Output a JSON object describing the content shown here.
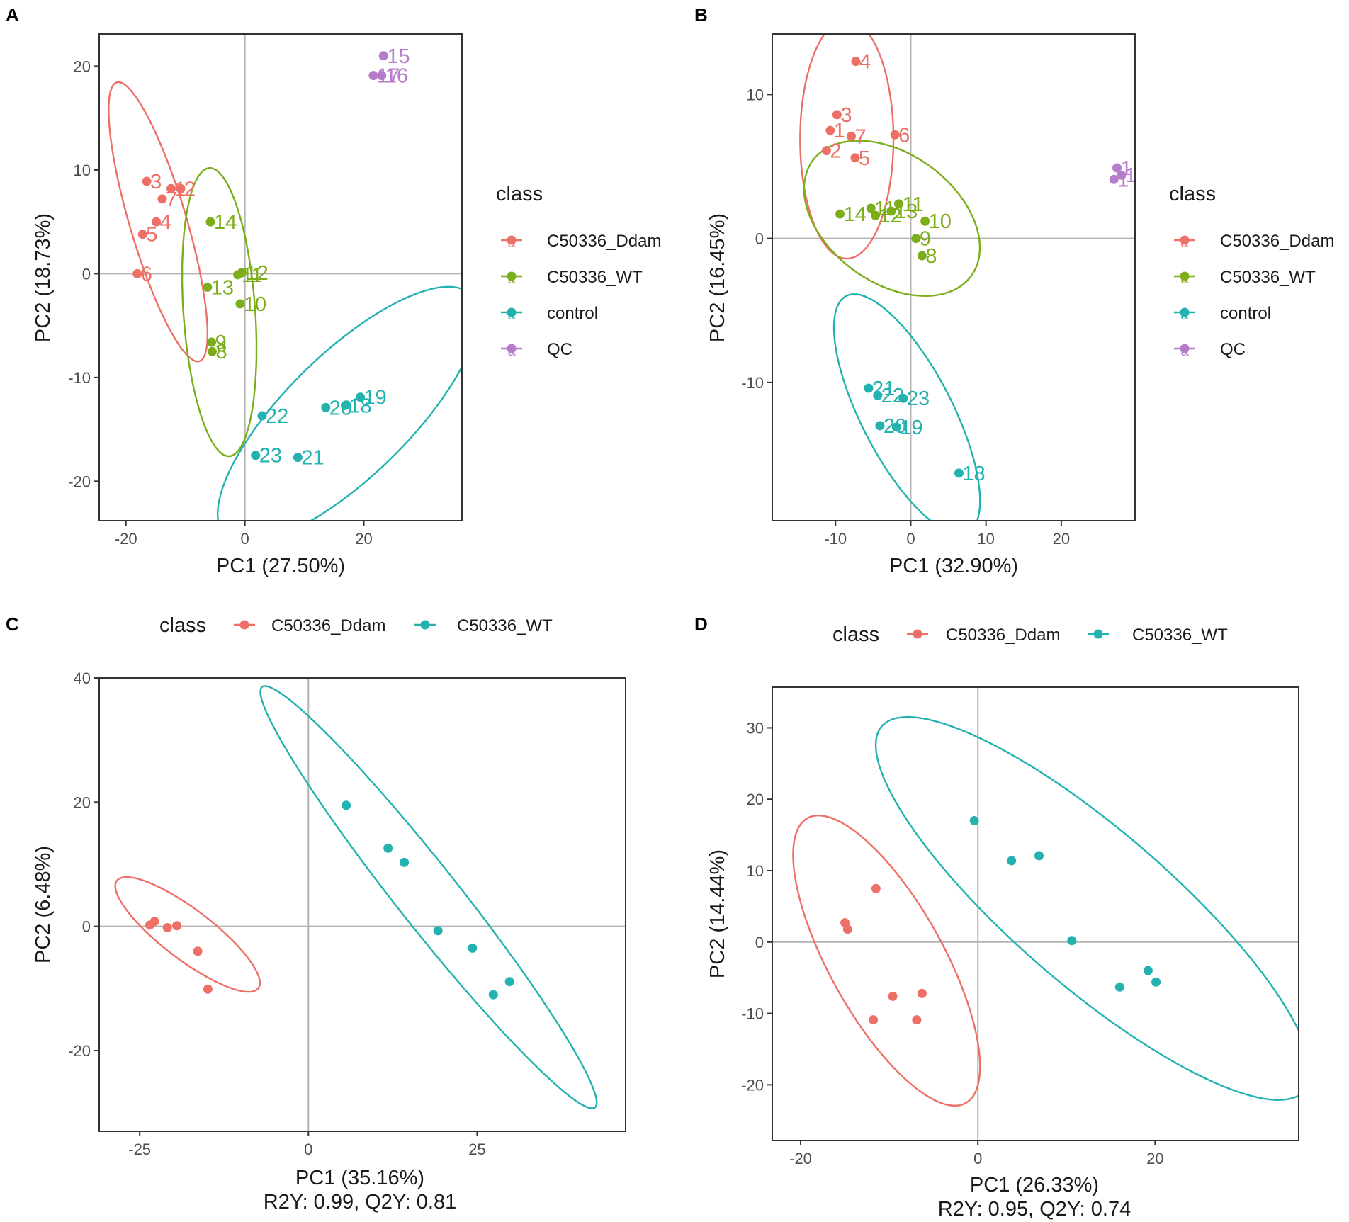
{
  "colors": {
    "ddam": "#ED6F66",
    "wt": "#7CAE1A",
    "control": "#23B2B0",
    "qc": "#B57CC9",
    "axis": "#333333",
    "tick_text": "#4d4d4d",
    "zero_line": "#b3b3b3",
    "text": "#1a1a1a"
  },
  "chart_data": [
    {
      "panel": "A",
      "type": "scatter",
      "xlabel": "PC1 (27.50%)",
      "ylabel": "PC2 (18.73%)",
      "xlim": [
        -24.5,
        36.5
      ],
      "ylim": [
        -23.8,
        23.1
      ],
      "xticks": [
        -20,
        0,
        20
      ],
      "xtick_labels": [
        "-20",
        "0",
        "20"
      ],
      "yticks": [
        -20,
        -10,
        0,
        10,
        20
      ],
      "ytick_labels": [
        "-20",
        "-10",
        "0",
        "10",
        "20"
      ],
      "legend": {
        "title": "class",
        "position": "right",
        "key_glyph": "a",
        "items": [
          {
            "label": "C50336_Ddam",
            "group": "ddam"
          },
          {
            "label": "C50336_WT",
            "group": "wt"
          },
          {
            "label": "control",
            "group": "control"
          },
          {
            "label": "QC",
            "group": "qc"
          }
        ]
      },
      "series": [
        {
          "name": "C50336_Ddam",
          "group": "ddam",
          "points": [
            {
              "x": -16.5,
              "y": 8.9,
              "label": "3"
            },
            {
              "x": -12.4,
              "y": 8.2,
              "label": "1"
            },
            {
              "x": -10.8,
              "y": 8.2,
              "label": "2"
            },
            {
              "x": -13.9,
              "y": 7.2,
              "label": "7"
            },
            {
              "x": -14.9,
              "y": 5.0,
              "label": "4"
            },
            {
              "x": -17.2,
              "y": 3.8,
              "label": "5"
            },
            {
              "x": -18.1,
              "y": 0.0,
              "label": "6"
            }
          ]
        },
        {
          "name": "C50336_WT",
          "group": "wt",
          "points": [
            {
              "x": -5.8,
              "y": 5.0,
              "label": "14"
            },
            {
              "x": -1.2,
              "y": -0.1,
              "label": "11"
            },
            {
              "x": -0.5,
              "y": 0.1,
              "label": "12"
            },
            {
              "x": -6.3,
              "y": -1.3,
              "label": "13"
            },
            {
              "x": -0.8,
              "y": -2.9,
              "label": "10"
            },
            {
              "x": -5.6,
              "y": -6.6,
              "label": "9"
            },
            {
              "x": -5.5,
              "y": -7.5,
              "label": "8"
            }
          ]
        },
        {
          "name": "control",
          "group": "control",
          "points": [
            {
              "x": 19.4,
              "y": -11.9,
              "label": "19"
            },
            {
              "x": 13.6,
              "y": -12.9,
              "label": "20"
            },
            {
              "x": 16.9,
              "y": -12.7,
              "label": "18"
            },
            {
              "x": 2.9,
              "y": -13.7,
              "label": "22"
            },
            {
              "x": 1.8,
              "y": -17.5,
              "label": "23"
            },
            {
              "x": 8.9,
              "y": -17.7,
              "label": "21"
            }
          ]
        },
        {
          "name": "QC",
          "group": "qc",
          "points": [
            {
              "x": 23.3,
              "y": 21.0,
              "label": "15"
            },
            {
              "x": 21.6,
              "y": 19.1,
              "label": "17"
            },
            {
              "x": 23.0,
              "y": 19.1,
              "label": "16"
            }
          ]
        }
      ],
      "ellipses": [
        {
          "group": "ddam",
          "cx": -14.6,
          "cy": 5.0,
          "rx": 15.2,
          "ry": 4.4,
          "angle_deg": -61
        },
        {
          "group": "wt",
          "cx": -4.3,
          "cy": -3.7,
          "rx": 14.0,
          "ry": 6.0,
          "angle_deg": -82
        },
        {
          "group": "control",
          "cx": 17.3,
          "cy": -13.6,
          "rx": 24.1,
          "ry": 7.1,
          "angle_deg": 26
        }
      ]
    },
    {
      "panel": "B",
      "type": "scatter",
      "xlabel": "PC1 (32.90%)",
      "ylabel": "PC2 (16.45%)",
      "xlim": [
        -18.4,
        29.8
      ],
      "ylim": [
        -19.6,
        14.2
      ],
      "xticks": [
        -10,
        0,
        10,
        20
      ],
      "xtick_labels": [
        "-10",
        "0",
        "10",
        "20"
      ],
      "yticks": [
        -10,
        0,
        10
      ],
      "ytick_labels": [
        "-10",
        "0",
        "10"
      ],
      "legend": {
        "title": "class",
        "position": "right",
        "key_glyph": "a",
        "items": [
          {
            "label": "C50336_Ddam",
            "group": "ddam"
          },
          {
            "label": "C50336_WT",
            "group": "wt"
          },
          {
            "label": "control",
            "group": "control"
          },
          {
            "label": "QC",
            "group": "qc"
          }
        ]
      },
      "series": [
        {
          "name": "C50336_Ddam",
          "group": "ddam",
          "points": [
            {
              "x": -7.3,
              "y": 12.3,
              "label": "4"
            },
            {
              "x": -9.8,
              "y": 8.6,
              "label": "3"
            },
            {
              "x": -10.7,
              "y": 7.5,
              "label": "1"
            },
            {
              "x": -7.9,
              "y": 7.1,
              "label": "7"
            },
            {
              "x": -2.1,
              "y": 7.2,
              "label": "6"
            },
            {
              "x": -11.2,
              "y": 6.1,
              "label": "2"
            },
            {
              "x": -7.4,
              "y": 5.6,
              "label": "5"
            }
          ]
        },
        {
          "name": "C50336_WT",
          "group": "wt",
          "points": [
            {
              "x": -5.3,
              "y": 2.1,
              "label": "11"
            },
            {
              "x": -1.6,
              "y": 2.4,
              "label": "11"
            },
            {
              "x": -9.4,
              "y": 1.7,
              "label": "14"
            },
            {
              "x": -4.7,
              "y": 1.6,
              "label": "12"
            },
            {
              "x": -2.6,
              "y": 1.9,
              "label": "13"
            },
            {
              "x": 1.9,
              "y": 1.2,
              "label": "10"
            },
            {
              "x": 0.7,
              "y": 0.0,
              "label": "9"
            },
            {
              "x": 1.5,
              "y": -1.2,
              "label": "8"
            }
          ]
        },
        {
          "name": "control",
          "group": "control",
          "points": [
            {
              "x": -5.6,
              "y": -10.4,
              "label": "21"
            },
            {
              "x": -4.4,
              "y": -10.9,
              "label": "22"
            },
            {
              "x": -1.0,
              "y": -11.1,
              "label": "23"
            },
            {
              "x": -4.1,
              "y": -13.0,
              "label": "20"
            },
            {
              "x": -1.9,
              "y": -13.1,
              "label": "19"
            },
            {
              "x": 6.4,
              "y": -16.3,
              "label": "18"
            }
          ]
        },
        {
          "name": "QC",
          "group": "qc",
          "points": [
            {
              "x": 27.4,
              "y": 4.9,
              "label": "1"
            },
            {
              "x": 27.0,
              "y": 4.1,
              "label": "1"
            },
            {
              "x": 28.0,
              "y": 4.4,
              "label": "1"
            }
          ]
        }
      ],
      "ellipses": [
        {
          "group": "ddam",
          "cx": -8.5,
          "cy": 6.9,
          "rx": 8.3,
          "ry": 6.2,
          "angle_deg": 90
        },
        {
          "group": "wt",
          "cx": -2.5,
          "cy": 1.4,
          "rx": 11.9,
          "ry": 4.9,
          "angle_deg": -12
        },
        {
          "group": "control",
          "cx": -0.5,
          "cy": -12.2,
          "rx": 11.9,
          "ry": 4.7,
          "angle_deg": -39
        }
      ]
    },
    {
      "panel": "C",
      "type": "scatter",
      "xlabel": "PC1 (35.16%)",
      "subcaption": "R2Y: 0.99, Q2Y: 0.81",
      "ylabel": "PC2 (6.48%)",
      "xlim": [
        -31,
        47
      ],
      "ylim": [
        -33,
        40
      ],
      "xticks": [
        -25,
        0,
        25
      ],
      "xtick_labels": [
        "-25",
        "0",
        "25"
      ],
      "yticks": [
        -20,
        0,
        20,
        40
      ],
      "ytick_labels": [
        "-20",
        "0",
        "20",
        "40"
      ],
      "legend": {
        "title": "class",
        "position": "top",
        "key_glyph": "point",
        "items": [
          {
            "label": "C50336_Ddam",
            "group": "ddam"
          },
          {
            "label": "C50336_WT",
            "group": "control"
          }
        ]
      },
      "series": [
        {
          "name": "C50336_Ddam",
          "group": "ddam",
          "points": [
            {
              "x": -22.8,
              "y": 0.8
            },
            {
              "x": -23.5,
              "y": 0.2
            },
            {
              "x": -20.9,
              "y": -0.2
            },
            {
              "x": -19.5,
              "y": 0.1
            },
            {
              "x": -16.4,
              "y": -4.0
            },
            {
              "x": -14.9,
              "y": -10.1
            }
          ]
        },
        {
          "name": "C50336_WT",
          "group": "control",
          "points": [
            {
              "x": 5.6,
              "y": 19.5
            },
            {
              "x": 11.8,
              "y": 12.6
            },
            {
              "x": 14.2,
              "y": 10.3
            },
            {
              "x": 19.2,
              "y": -0.7
            },
            {
              "x": 24.3,
              "y": -3.5
            },
            {
              "x": 27.4,
              "y": -11.0
            },
            {
              "x": 29.8,
              "y": -8.9
            }
          ]
        }
      ],
      "ellipses": [
        {
          "group": "ddam",
          "cx": -17.9,
          "cy": -1.3,
          "rx": 13.6,
          "ry": 3.9,
          "angle_deg": -40
        },
        {
          "group": "control",
          "cx": 17.8,
          "cy": 4.7,
          "rx": 41.9,
          "ry": 4.7,
          "angle_deg": -54
        }
      ]
    },
    {
      "panel": "D",
      "type": "scatter",
      "xlabel": "PC1 (26.33%)",
      "subcaption": "R2Y: 0.95, Q2Y: 0.74",
      "ylabel": "PC2 (14.44%)",
      "xlim": [
        -23.2,
        36.2
      ],
      "ylim": [
        -27.8,
        35.7
      ],
      "xticks": [
        -20,
        0,
        20
      ],
      "xtick_labels": [
        "-20",
        "0",
        "20"
      ],
      "yticks": [
        -20,
        -10,
        0,
        10,
        20,
        30
      ],
      "ytick_labels": [
        "-20",
        "-10",
        "0",
        "10",
        "20",
        "30"
      ],
      "legend": {
        "title": "class",
        "position": "top",
        "key_glyph": "point",
        "items": [
          {
            "label": "C50336_Ddam",
            "group": "ddam"
          },
          {
            "label": "C50336_WT",
            "group": "control"
          }
        ]
      },
      "series": [
        {
          "name": "C50336_Ddam",
          "group": "ddam",
          "points": [
            {
              "x": -11.5,
              "y": 7.5
            },
            {
              "x": -15.0,
              "y": 2.7
            },
            {
              "x": -14.7,
              "y": 1.8
            },
            {
              "x": -9.6,
              "y": -7.6
            },
            {
              "x": -6.3,
              "y": -7.2
            },
            {
              "x": -11.8,
              "y": -10.9
            },
            {
              "x": -6.9,
              "y": -10.9
            }
          ]
        },
        {
          "name": "C50336_WT",
          "group": "control",
          "points": [
            {
              "x": -0.4,
              "y": 17.0
            },
            {
              "x": 3.8,
              "y": 11.4
            },
            {
              "x": 6.9,
              "y": 12.1
            },
            {
              "x": 10.6,
              "y": 0.2
            },
            {
              "x": 16.0,
              "y": -6.3
            },
            {
              "x": 19.2,
              "y": -4.0
            },
            {
              "x": 20.1,
              "y": -5.6
            }
          ]
        }
      ],
      "ellipses": [
        {
          "group": "ddam",
          "cx": -10.3,
          "cy": -2.6,
          "rx": 21.9,
          "ry": 6.7,
          "angle_deg": -67
        },
        {
          "group": "control",
          "cx": 13.0,
          "cy": 4.7,
          "rx": 35.0,
          "ry": 9.8,
          "angle_deg": -48
        }
      ]
    }
  ]
}
